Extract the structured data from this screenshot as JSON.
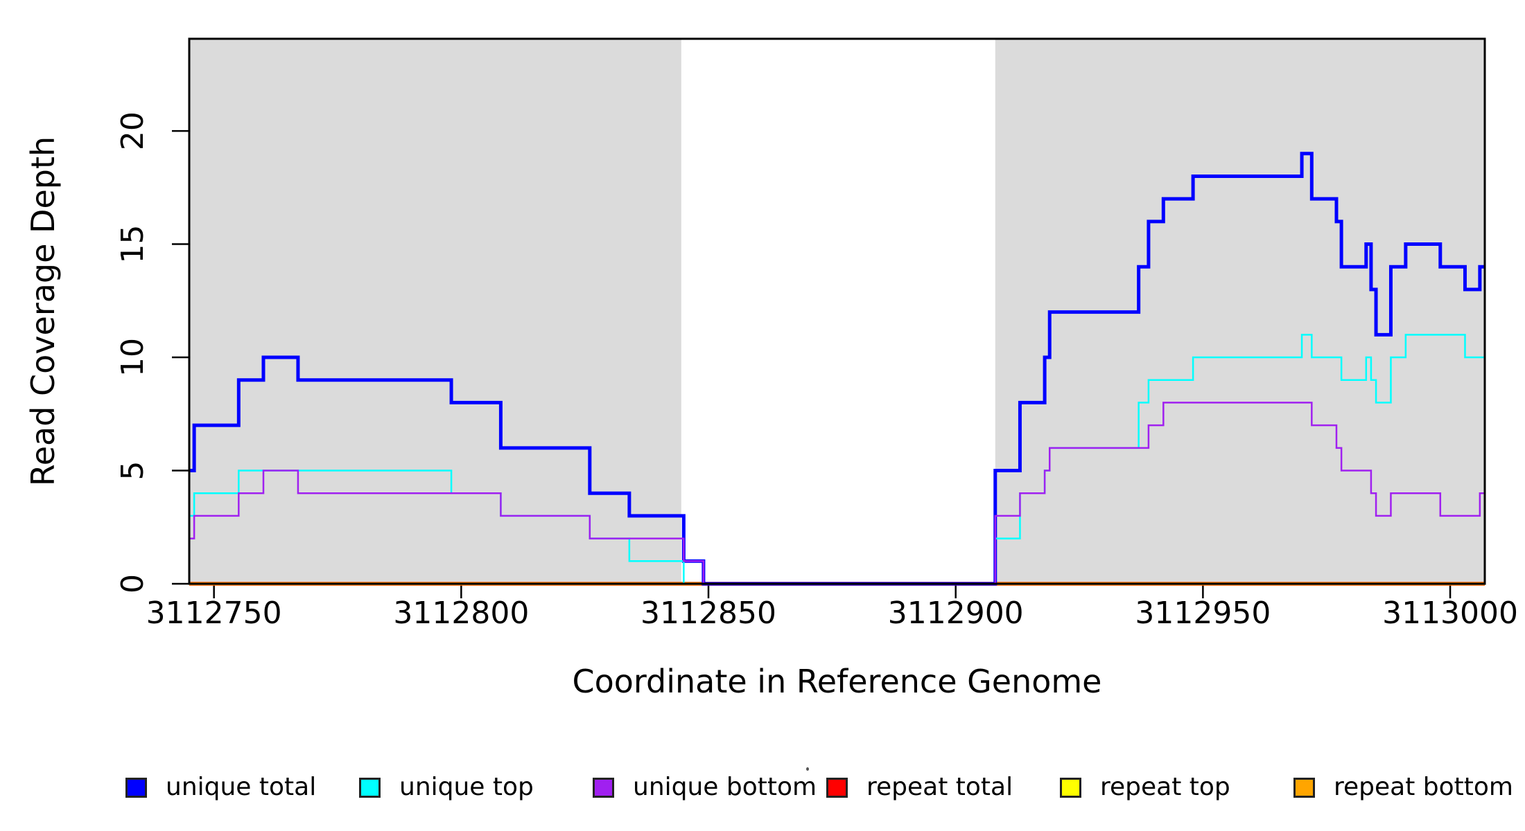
{
  "figure": {
    "xlabel": "Coordinate in Reference Genome",
    "ylabel": "Read Coverage Depth"
  },
  "chart_data": {
    "type": "line",
    "subtype": "step-after",
    "title": "",
    "xlabel": "Coordinate in Reference Genome",
    "ylabel": "Read Coverage Depth",
    "xlim": [
      3112745,
      3113007
    ],
    "ylim": [
      0,
      24.07
    ],
    "x_ticks": [
      3112750,
      3112800,
      3112850,
      3112900,
      3112950,
      3113000
    ],
    "y_ticks": [
      0,
      5,
      10,
      15,
      20
    ],
    "grid": false,
    "legend_position": "bottom",
    "background_color": "#FFFFFF",
    "shaded_regions": {
      "color": "#DBDBDB",
      "regions": [
        [
          3112745,
          3112844.5
        ],
        [
          3112908,
          3113007
        ]
      ]
    },
    "series": [
      {
        "name": "repeat total",
        "color": "#FF0000",
        "line_width": 5.5,
        "points": [
          [
            3112745,
            0
          ]
        ]
      },
      {
        "name": "repeat top",
        "color": "#FFFF00",
        "line_width": 4.5,
        "points": [
          [
            3112745,
            0
          ]
        ]
      },
      {
        "name": "repeat bottom",
        "color": "#FFA500",
        "line_width": 4,
        "points": [
          [
            3112745,
            0
          ]
        ]
      },
      {
        "name": "unique total",
        "color": "#0000FF",
        "line_width": 5,
        "points": [
          [
            3112745,
            5
          ],
          [
            3112746,
            7
          ],
          [
            3112755,
            9
          ],
          [
            3112760,
            10
          ],
          [
            3112767,
            9
          ],
          [
            3112798,
            8
          ],
          [
            3112808,
            6
          ],
          [
            3112826,
            4
          ],
          [
            3112834,
            3
          ],
          [
            3112845,
            1
          ],
          [
            3112849,
            0
          ],
          [
            3112908,
            5
          ],
          [
            3112913,
            8
          ],
          [
            3112918,
            10
          ],
          [
            3112919,
            12
          ],
          [
            3112937,
            14
          ],
          [
            3112939,
            16
          ],
          [
            3112942,
            17
          ],
          [
            3112948,
            18
          ],
          [
            3112970,
            19
          ],
          [
            3112972,
            17
          ],
          [
            3112977,
            16
          ],
          [
            3112978,
            14
          ],
          [
            3112983,
            15
          ],
          [
            3112984,
            13
          ],
          [
            3112985,
            11
          ],
          [
            3112988,
            14
          ],
          [
            3112991,
            15
          ],
          [
            3112998,
            14
          ],
          [
            3113003,
            13
          ],
          [
            3113006,
            14
          ]
        ]
      },
      {
        "name": "unique top",
        "color": "#00FFFF",
        "line_width": 2.5,
        "points": [
          [
            3112745,
            3
          ],
          [
            3112746,
            4
          ],
          [
            3112755,
            5
          ],
          [
            3112798,
            4
          ],
          [
            3112808,
            3
          ],
          [
            3112826,
            2
          ],
          [
            3112834,
            1
          ],
          [
            3112845,
            0
          ],
          [
            3112908,
            2
          ],
          [
            3112913,
            4
          ],
          [
            3112918,
            5
          ],
          [
            3112919,
            6
          ],
          [
            3112937,
            8
          ],
          [
            3112939,
            9
          ],
          [
            3112948,
            10
          ],
          [
            3112970,
            11
          ],
          [
            3112972,
            10
          ],
          [
            3112978,
            9
          ],
          [
            3112983,
            10
          ],
          [
            3112984,
            9
          ],
          [
            3112985,
            8
          ],
          [
            3112988,
            10
          ],
          [
            3112991,
            11
          ],
          [
            3113003,
            10
          ]
        ]
      },
      {
        "name": "unique bottom",
        "color": "#A020F0",
        "line_width": 2.5,
        "points": [
          [
            3112745,
            2
          ],
          [
            3112746,
            3
          ],
          [
            3112755,
            4
          ],
          [
            3112760,
            5
          ],
          [
            3112767,
            4
          ],
          [
            3112808,
            3
          ],
          [
            3112826,
            2
          ],
          [
            3112845,
            1
          ],
          [
            3112849,
            0
          ],
          [
            3112908,
            3
          ],
          [
            3112913,
            4
          ],
          [
            3112918,
            5
          ],
          [
            3112919,
            6
          ],
          [
            3112939,
            7
          ],
          [
            3112942,
            8
          ],
          [
            3112972,
            7
          ],
          [
            3112977,
            6
          ],
          [
            3112978,
            5
          ],
          [
            3112984,
            4
          ],
          [
            3112985,
            3
          ],
          [
            3112988,
            4
          ],
          [
            3112998,
            3
          ],
          [
            3113006,
            4
          ]
        ]
      }
    ]
  },
  "legend": {
    "items": [
      {
        "label": "unique total",
        "color": "#0000FF"
      },
      {
        "label": "unique top",
        "color": "#00FFFF"
      },
      {
        "label": "unique bottom",
        "color": "#A020F0"
      },
      {
        "label": "repeat total",
        "color": "#FF0000"
      },
      {
        "label": "repeat top",
        "color": "#FFFF00"
      },
      {
        "label": "repeat bottom",
        "color": "#FFA500"
      }
    ]
  }
}
